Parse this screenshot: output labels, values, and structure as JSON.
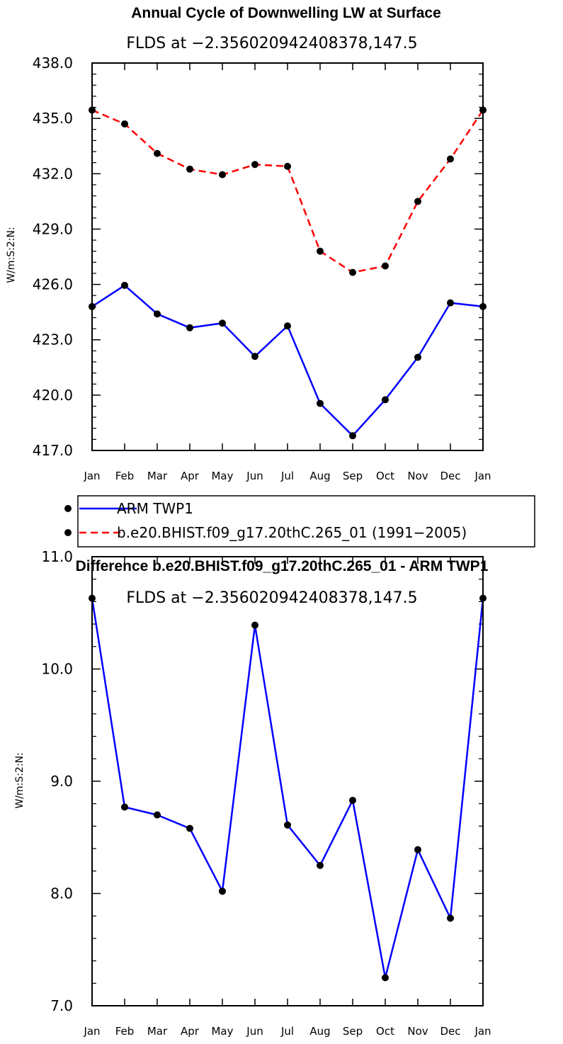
{
  "chart_data": [
    {
      "type": "line",
      "title": "Annual Cycle of Downwelling LW at Surface",
      "subtitle": "FLDS at −2.356020942408378,147.5",
      "ylabel": "W/m:S:2:N:",
      "xlabel": "",
      "categories": [
        "Jan",
        "Feb",
        "Mar",
        "Apr",
        "May",
        "Jun",
        "Jul",
        "Aug",
        "Sep",
        "Oct",
        "Nov",
        "Dec",
        "Jan"
      ],
      "ylim": [
        417.0,
        438.0
      ],
      "yticks": [
        "417.0",
        "420.0",
        "423.0",
        "426.0",
        "429.0",
        "432.0",
        "435.0",
        "438.0"
      ],
      "series": [
        {
          "name": "ARM TWP1",
          "color": "#0000ff",
          "dash": "solid",
          "values": [
            424.8,
            425.95,
            424.4,
            423.65,
            423.9,
            422.1,
            423.75,
            419.55,
            417.8,
            419.75,
            422.05,
            425.0,
            424.8
          ]
        },
        {
          "name": "b.e20.BHIST.f09_g17.20thC.265_01 (1991−2005)",
          "color": "#ff0000",
          "dash": "dashed",
          "values": [
            435.45,
            434.7,
            433.1,
            432.25,
            431.95,
            432.5,
            432.4,
            427.8,
            426.65,
            427.0,
            430.5,
            432.8,
            435.45
          ]
        }
      ]
    },
    {
      "type": "line",
      "title": "Difference b.e20.BHIST.f09_g17.20thC.265_01 - ARM TWP1",
      "subtitle": "FLDS at −2.356020942408378,147.5",
      "ylabel": "W/m:S:2:N:",
      "xlabel": "",
      "categories": [
        "Jan",
        "Feb",
        "Mar",
        "Apr",
        "May",
        "Jun",
        "Jul",
        "Aug",
        "Sep",
        "Oct",
        "Nov",
        "Dec",
        "Jan"
      ],
      "ylim": [
        7.0,
        11.0
      ],
      "yticks": [
        "7.0",
        "8.0",
        "9.0",
        "10.0",
        "11.0"
      ],
      "series": [
        {
          "name": "Difference",
          "color": "#0000ff",
          "dash": "solid",
          "values": [
            10.63,
            8.77,
            8.7,
            8.58,
            8.02,
            10.39,
            8.61,
            8.25,
            8.83,
            7.25,
            8.39,
            7.78,
            10.63
          ]
        }
      ]
    }
  ],
  "legend": {
    "entries": [
      "ARM TWP1",
      "b.e20.BHIST.f09_g17.20thC.265_01 (1991−2005)"
    ]
  }
}
